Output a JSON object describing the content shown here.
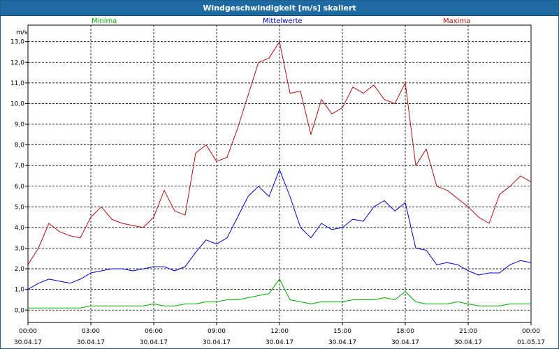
{
  "window_title": "Windgeschwindigkeit [m/s] skaliert",
  "chart_data": {
    "type": "line",
    "ylabel": "m/s",
    "ylim": [
      -0.6,
      13.8
    ],
    "y_ticks": [
      "0,0",
      "1,0",
      "2,0",
      "3,0",
      "4,0",
      "5,0",
      "6,0",
      "7,0",
      "8,0",
      "9,0",
      "10,0",
      "11,0",
      "12,0",
      "13,0"
    ],
    "x_ticks": [
      {
        "time": "00:00",
        "date": "30.04.17"
      },
      {
        "time": "03:00",
        "date": "30.04.17"
      },
      {
        "time": "06:00",
        "date": "30.04.17"
      },
      {
        "time": "09:00",
        "date": "30.04.17"
      },
      {
        "time": "12:00",
        "date": "30.04.17"
      },
      {
        "time": "15:00",
        "date": "30.04.17"
      },
      {
        "time": "18:00",
        "date": "30.04.17"
      },
      {
        "time": "21:00",
        "date": "30.04.17"
      },
      {
        "time": "00:00",
        "date": "01.05.17"
      }
    ],
    "grid": true,
    "x_hours": [
      0,
      0.5,
      1,
      1.5,
      2,
      2.5,
      3,
      3.5,
      4,
      4.5,
      5,
      5.5,
      6,
      6.5,
      7,
      7.5,
      8,
      8.5,
      9,
      9.5,
      10,
      10.5,
      11,
      11.5,
      12,
      12.5,
      13,
      13.5,
      14,
      14.5,
      15,
      15.5,
      16,
      16.5,
      17,
      17.5,
      18,
      18.5,
      19,
      19.5,
      20,
      20.5,
      21,
      21.5,
      22,
      22.5,
      23,
      23.5,
      24
    ],
    "series": [
      {
        "name": "Minima",
        "color": "#00aa00",
        "values": [
          0.1,
          0.1,
          0.1,
          0.1,
          0.1,
          0.1,
          0.2,
          0.2,
          0.2,
          0.2,
          0.2,
          0.2,
          0.3,
          0.2,
          0.2,
          0.3,
          0.3,
          0.4,
          0.4,
          0.5,
          0.5,
          0.6,
          0.7,
          0.8,
          1.5,
          0.5,
          0.4,
          0.3,
          0.4,
          0.4,
          0.4,
          0.5,
          0.5,
          0.5,
          0.6,
          0.5,
          0.9,
          0.4,
          0.3,
          0.3,
          0.3,
          0.4,
          0.3,
          0.2,
          0.2,
          0.2,
          0.3,
          0.3,
          0.3
        ]
      },
      {
        "name": "Mittelwerte",
        "color": "#0000cc",
        "values": [
          1.0,
          1.3,
          1.5,
          1.4,
          1.3,
          1.5,
          1.8,
          1.9,
          2.0,
          2.0,
          1.9,
          2.0,
          2.1,
          2.1,
          1.9,
          2.1,
          2.8,
          3.4,
          3.2,
          3.5,
          4.5,
          5.5,
          6.0,
          5.5,
          6.8,
          5.5,
          4.0,
          3.5,
          4.2,
          3.9,
          4.0,
          4.4,
          4.3,
          5.0,
          5.3,
          4.8,
          5.2,
          3.0,
          2.9,
          2.2,
          2.3,
          2.2,
          1.9,
          1.7,
          1.8,
          1.8,
          2.2,
          2.4,
          2.3
        ]
      },
      {
        "name": "Maxima",
        "color": "#b01010",
        "values": [
          2.2,
          3.0,
          4.2,
          3.8,
          3.6,
          3.5,
          4.5,
          5.0,
          4.4,
          4.2,
          4.1,
          4.0,
          4.5,
          5.8,
          4.8,
          4.6,
          7.6,
          8.0,
          7.2,
          7.4,
          8.8,
          10.4,
          12.0,
          12.2,
          13.0,
          10.5,
          10.6,
          8.5,
          10.2,
          9.5,
          9.8,
          10.8,
          10.5,
          10.9,
          10.2,
          10.0,
          11.0,
          7.0,
          7.8,
          6.0,
          5.8,
          5.4,
          5.0,
          4.5,
          4.2,
          5.6,
          6.0,
          6.5,
          6.2
        ]
      }
    ]
  }
}
